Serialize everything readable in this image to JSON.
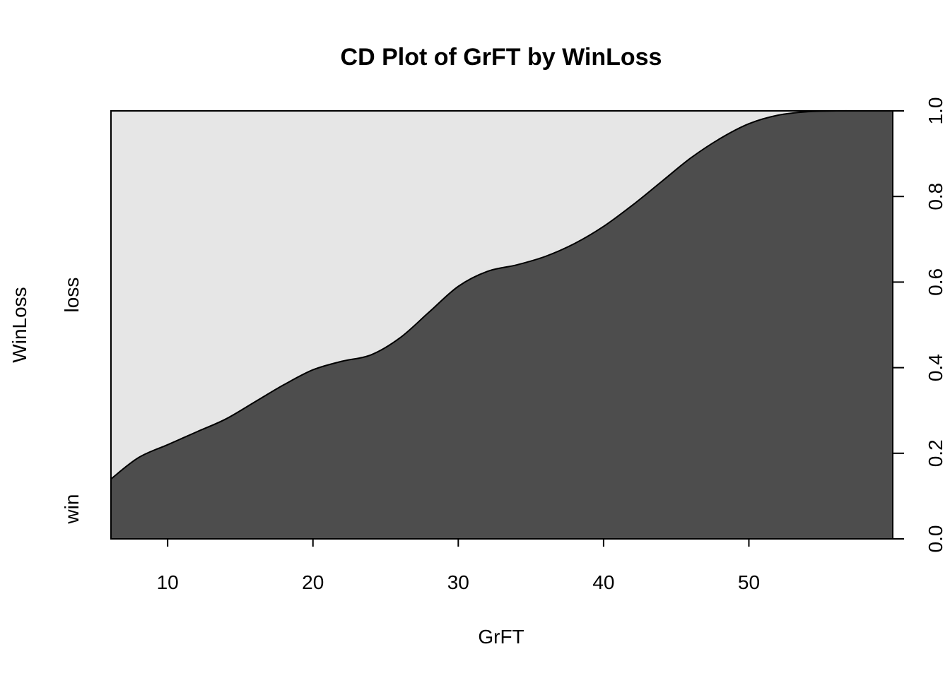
{
  "chart_data": {
    "type": "area",
    "title": "CD Plot of GrFT by WinLoss",
    "xlabel": "GrFT",
    "ylabel": "WinLoss",
    "xlim": [
      6.1,
      59.9
    ],
    "ylim": [
      0,
      1
    ],
    "x_ticks": [
      "10",
      "20",
      "30",
      "40",
      "50"
    ],
    "x_tick_values": [
      10,
      20,
      30,
      40,
      50
    ],
    "y_right_ticks": [
      "0.0",
      "0.2",
      "0.4",
      "0.6",
      "0.8",
      "1.0"
    ],
    "y_right_tick_values": [
      0,
      0.2,
      0.4,
      0.6,
      0.8,
      1.0
    ],
    "categories": [
      "win",
      "loss"
    ],
    "category_label_positions": [
      0.07,
      0.57
    ],
    "colors": {
      "win": "#4d4d4d",
      "loss": "#e6e6e6",
      "border": "#000000"
    },
    "grid": false,
    "series": [
      {
        "name": "win",
        "x": [
          6.1,
          8,
          10,
          12,
          14,
          16,
          18,
          20,
          22,
          24,
          26,
          28,
          30,
          32,
          34,
          36,
          38,
          40,
          42,
          44,
          46,
          48,
          50,
          52,
          54,
          56,
          58,
          59.9
        ],
        "values": [
          0.14,
          0.19,
          0.22,
          0.25,
          0.28,
          0.32,
          0.36,
          0.395,
          0.415,
          0.43,
          0.47,
          0.53,
          0.59,
          0.625,
          0.64,
          0.66,
          0.69,
          0.73,
          0.78,
          0.835,
          0.89,
          0.935,
          0.97,
          0.99,
          0.998,
          1.0,
          1.0,
          1.0
        ]
      }
    ]
  }
}
